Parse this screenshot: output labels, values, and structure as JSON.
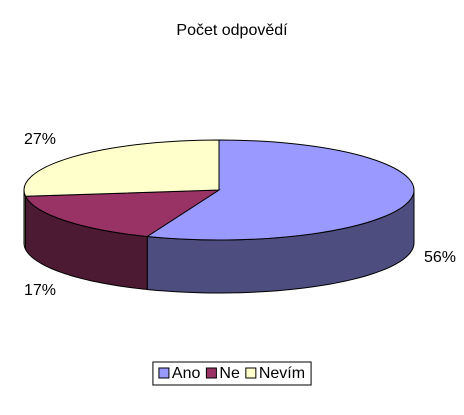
{
  "chart_data": {
    "type": "pie3d",
    "title": "Počet odpovědí",
    "categories": [
      "Ano",
      "Ne",
      "Nevím"
    ],
    "values": [
      56,
      17,
      27
    ],
    "value_labels": [
      "56%",
      "17%",
      "27%"
    ],
    "colors": [
      "#9999ff",
      "#993366",
      "#ffffcc"
    ],
    "legend": "bottom"
  }
}
